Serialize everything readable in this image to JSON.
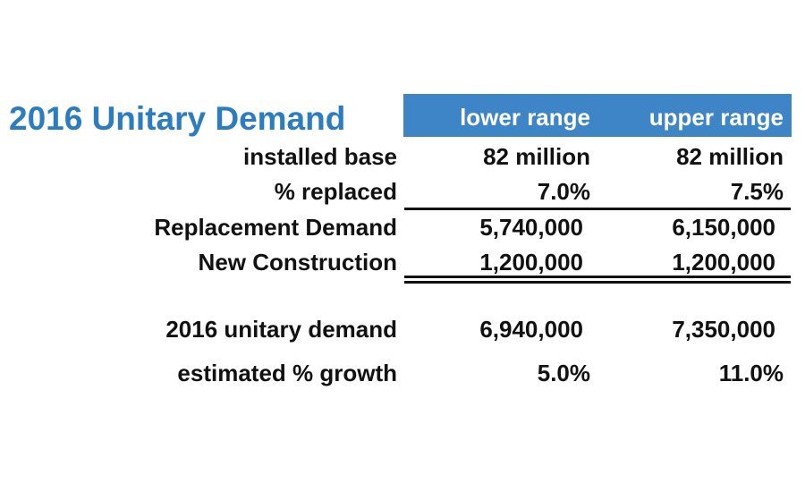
{
  "colors": {
    "title": "#2b7cc1",
    "header_band": "#3d85c6",
    "header_text": "#ffffff",
    "text": "#111111"
  },
  "title": "2016 Unitary Demand",
  "columns": {
    "lower": "lower range",
    "upper": "upper range"
  },
  "rows": [
    {
      "label": "installed base",
      "lower": "82 million",
      "upper": "82 million"
    },
    {
      "label": "% replaced",
      "lower": "7.0%",
      "upper": "7.5%"
    },
    {
      "label": "Replacement Demand",
      "lower": "5,740,000",
      "upper": "6,150,000"
    },
    {
      "label": "New Construction",
      "lower": "1,200,000",
      "upper": "1,200,000"
    },
    {
      "label": "2016 unitary demand",
      "lower": "6,940,000",
      "upper": "7,350,000"
    },
    {
      "label": "estimated % growth",
      "lower": "5.0%",
      "upper": "11.0%"
    }
  ],
  "chart_data": {
    "type": "table",
    "title": "2016 Unitary Demand",
    "columns": [
      "lower range",
      "upper range"
    ],
    "rows": [
      {
        "label": "installed base",
        "values": [
          "82 million",
          "82 million"
        ]
      },
      {
        "label": "% replaced",
        "values": [
          "7.0%",
          "7.5%"
        ]
      },
      {
        "label": "Replacement Demand",
        "values": [
          5740000,
          6150000
        ]
      },
      {
        "label": "New Construction",
        "values": [
          1200000,
          1200000
        ]
      },
      {
        "label": "2016 unitary demand",
        "values": [
          6940000,
          7350000
        ]
      },
      {
        "label": "estimated % growth",
        "values": [
          "5.0%",
          "11.0%"
        ]
      }
    ]
  }
}
